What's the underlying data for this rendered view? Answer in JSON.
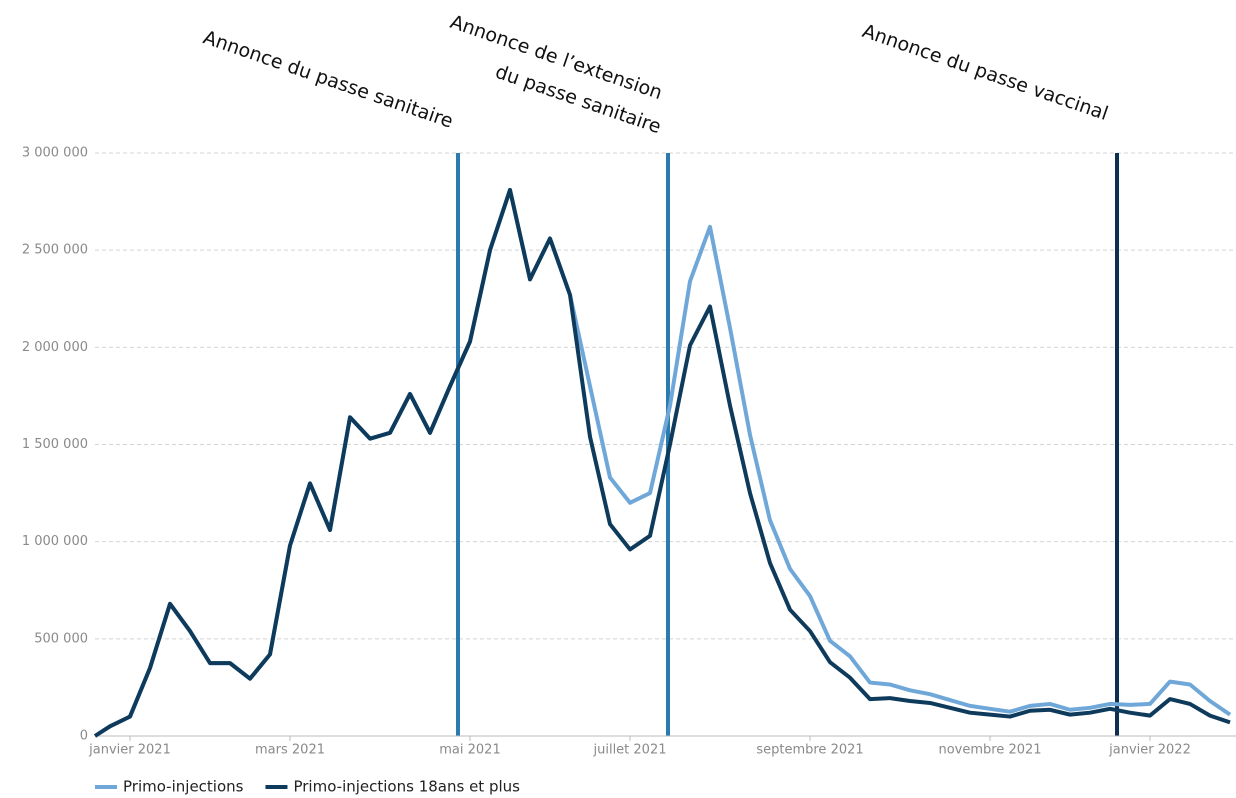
{
  "chart_data": {
    "type": "line",
    "annotations": [
      "Annonce du passe sanitaire",
      "Annonce de l’extension",
      "du passe sanitaire",
      "Annonce du passe vaccinal"
    ],
    "categories": [
      null,
      null,
      "janvier 2021",
      null,
      null,
      null,
      null,
      null,
      null,
      null,
      "mars 2021",
      null,
      null,
      null,
      null,
      null,
      null,
      null,
      null,
      "mai 2021",
      null,
      null,
      null,
      null,
      null,
      null,
      null,
      "juillet 2021",
      null,
      null,
      null,
      null,
      null,
      null,
      null,
      null,
      "septembre 2021",
      null,
      null,
      null,
      null,
      null,
      null,
      null,
      null,
      "novembre 2021",
      null,
      null,
      null,
      null,
      null,
      null,
      null,
      "janvier 2022",
      null,
      null,
      null,
      null
    ],
    "series": [
      {
        "name": "Primo-injections",
        "color": "#6fa8d8",
        "values": [
          0,
          50000,
          100000,
          350000,
          680000,
          540000,
          375000,
          375000,
          295000,
          420000,
          980000,
          1300000,
          1060000,
          1640000,
          1530000,
          1560000,
          1760000,
          1560000,
          1800000,
          2030000,
          2500000,
          2810000,
          2350000,
          2560000,
          2270000,
          1800000,
          1330000,
          1200000,
          1250000,
          1700000,
          2340000,
          2620000,
          2100000,
          1550000,
          1110000,
          860000,
          720000,
          490000,
          410000,
          275000,
          265000,
          235000,
          215000,
          185000,
          155000,
          140000,
          125000,
          155000,
          165000,
          135000,
          145000,
          165000,
          160000,
          165000,
          280000,
          265000,
          180000,
          110000
        ]
      },
      {
        "name": "Primo-injections 18ans et plus",
        "color": "#0e3a5c",
        "values": [
          0,
          50000,
          100000,
          350000,
          680000,
          540000,
          375000,
          375000,
          295000,
          420000,
          980000,
          1300000,
          1060000,
          1640000,
          1530000,
          1560000,
          1760000,
          1560000,
          1800000,
          2030000,
          2500000,
          2810000,
          2350000,
          2560000,
          2270000,
          1540000,
          1090000,
          960000,
          1030000,
          1500000,
          2010000,
          2210000,
          1700000,
          1250000,
          890000,
          650000,
          540000,
          380000,
          300000,
          190000,
          195000,
          180000,
          170000,
          145000,
          120000,
          110000,
          100000,
          130000,
          135000,
          110000,
          120000,
          140000,
          120000,
          105000,
          190000,
          165000,
          105000,
          70000
        ]
      }
    ],
    "ylim": [
      0,
      3000000
    ],
    "yticks": [
      0,
      {
        "value": 500000,
        "label": "500 000"
      },
      {
        "value": 1000000,
        "label": "1 000 000"
      },
      {
        "value": 1500000,
        "label": "1 500 000"
      },
      {
        "value": 2000000,
        "label": "2 000 000"
      },
      {
        "value": 2500000,
        "label": "2 500 000"
      },
      {
        "value": 3000000,
        "label": "3 000 000"
      }
    ],
    "grid": true
  }
}
